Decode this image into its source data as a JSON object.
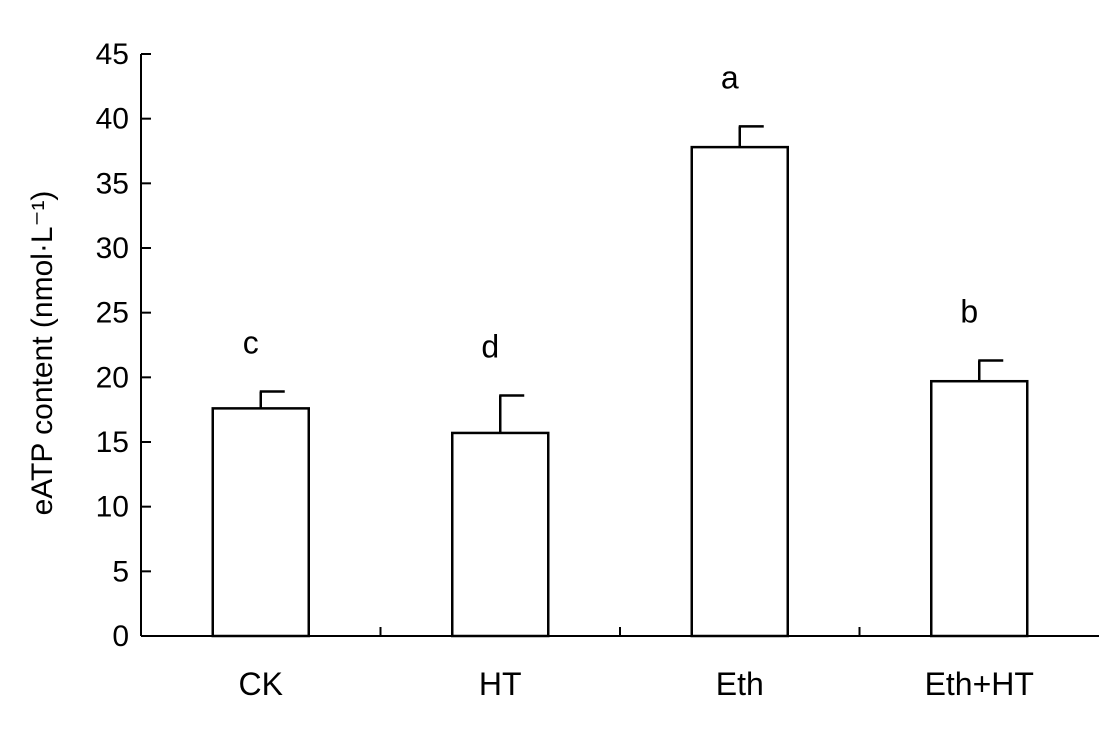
{
  "chart_data": {
    "type": "bar",
    "title": "",
    "xlabel": "",
    "ylabel": "eATP content (nmol·L⁻¹)",
    "ylim": [
      0,
      45
    ],
    "yticks": [
      "0",
      "5",
      "10",
      "15",
      "20",
      "25",
      "30",
      "35",
      "40",
      "45"
    ],
    "categories": [
      "CK",
      "HT",
      "Eth",
      "Eth+HT"
    ],
    "values": [
      17.6,
      15.7,
      37.8,
      19.7
    ],
    "errors": [
      1.3,
      2.9,
      1.6,
      1.6
    ],
    "significance": [
      "c",
      "d",
      "a",
      "b"
    ],
    "grid": false,
    "legend": "none",
    "bar_fill": "#ffffff",
    "bar_stroke": "#000000"
  }
}
